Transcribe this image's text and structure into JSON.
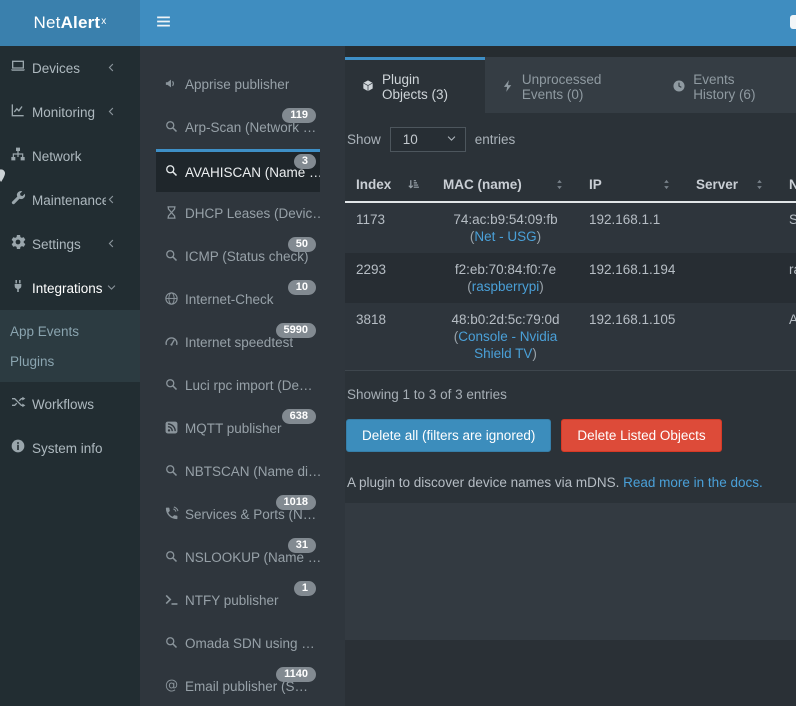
{
  "brand": {
    "net": "Net",
    "alert": "Alert",
    "sup": "x"
  },
  "navbar": {
    "menu_icon": "hamburger-icon",
    "right_partial_icon": "unknown-partial-icon"
  },
  "sidebar": {
    "items": [
      {
        "label": "Devices",
        "icon": "laptop-icon",
        "chevron": "left"
      },
      {
        "label": "Monitoring",
        "icon": "chart-icon",
        "chevron": "left"
      },
      {
        "label": "Network",
        "icon": "network-icon",
        "chevron": null
      },
      {
        "label": "Maintenance",
        "icon": "wrench-icon",
        "chevron": "left"
      },
      {
        "label": "Settings",
        "icon": "gear-icon",
        "chevron": "left"
      },
      {
        "label": "Integrations",
        "icon": "plug-icon",
        "chevron": "down",
        "active": true,
        "children": [
          {
            "label": "App Events"
          },
          {
            "label": "Plugins"
          }
        ]
      },
      {
        "label": "Workflows",
        "icon": "shuffle-icon",
        "chevron": null
      },
      {
        "label": "System info",
        "icon": "info-icon",
        "chevron": null
      }
    ]
  },
  "plugin_list": {
    "items": [
      {
        "label": "Apprise publisher",
        "icon": "bullhorn-icon"
      },
      {
        "label": "Arp-Scan (Network …",
        "icon": "search-icon",
        "badge": "119"
      },
      {
        "label": "AVAHISCAN (Name …",
        "icon": "search-icon",
        "badge": "3",
        "active": true
      },
      {
        "label": "DHCP Leases (Devic…",
        "icon": "hourglass-icon"
      },
      {
        "label": "ICMP (Status check)",
        "icon": "search-icon",
        "badge": "50"
      },
      {
        "label": "Internet-Check",
        "icon": "globe-icon",
        "badge": "10"
      },
      {
        "label": "Internet speedtest",
        "icon": "gauge-icon",
        "badge": "5990"
      },
      {
        "label": "Luci rpc import (De…",
        "icon": "search-icon"
      },
      {
        "label": "MQTT publisher",
        "icon": "rss-icon",
        "badge": "638"
      },
      {
        "label": "NBTSCAN (Name di…",
        "icon": "search-icon"
      },
      {
        "label": "Services & Ports (N…",
        "icon": "phone-volume-icon",
        "badge": "1018"
      },
      {
        "label": "NSLOOKUP (Name …",
        "icon": "search-icon",
        "badge": "31"
      },
      {
        "label": "NTFY publisher",
        "icon": "terminal-icon",
        "badge": "1"
      },
      {
        "label": "Omada SDN using …",
        "icon": "search-icon"
      },
      {
        "label": "Email publisher (S…",
        "icon": "at-icon",
        "badge": "1140"
      }
    ]
  },
  "main": {
    "tabs": [
      {
        "label": "Plugin Objects (3)",
        "icon": "cube-icon",
        "active": true
      },
      {
        "label": "Unprocessed Events (0)",
        "icon": "bolt-icon",
        "active": false
      },
      {
        "label": "Events History (6)",
        "icon": "clock-icon",
        "active": false
      }
    ],
    "controls": {
      "show": "Show",
      "page_size": "10",
      "entries": "entries"
    },
    "table": {
      "columns": [
        {
          "label": "Index",
          "sort_icon": "sort-amount-asc-icon",
          "sorted": true
        },
        {
          "label": "MAC (name)",
          "sort_icon": "sort-icon",
          "sorted": false
        },
        {
          "label": "IP",
          "sort_icon": "sort-icon",
          "sorted": false
        },
        {
          "label": "Server",
          "sort_icon": "sort-icon",
          "sorted": false
        },
        {
          "label": "N",
          "sort_icon": null,
          "sorted": false
        }
      ],
      "rows": [
        {
          "index": "1173",
          "mac": "74:ac:b9:54:09:fb",
          "name": "Net - USG",
          "ip": "192.168.1.1",
          "server": "",
          "name_col": "Se"
        },
        {
          "index": "2293",
          "mac": "f2:eb:70:84:f0:7e",
          "name": "raspberrypi",
          "ip": "192.168.1.194",
          "server": "",
          "name_col": "ra"
        },
        {
          "index": "3818",
          "mac": "48:b0:2d:5c:79:0d",
          "name": "Console - Nvidia Shield TV",
          "ip": "192.168.1.105",
          "server": "",
          "name_col": "An"
        }
      ]
    },
    "summary": "Showing 1 to 3 of 3 entries",
    "buttons": {
      "delete_all": "Delete all (filters are ignored)",
      "delete_listed": "Delete Listed Objects"
    },
    "footer": {
      "description": "A plugin to discover device names via mDNS.",
      "link": "Read more in the docs."
    }
  },
  "colors": {
    "navbar": "#3f8dc0",
    "logo": "#3a80ad",
    "accent": "#3e8fc6",
    "primary_button": "#3c8dbc",
    "danger_button": "#dd4b39",
    "badge": "#828a91",
    "link": "#4aa0d8"
  }
}
